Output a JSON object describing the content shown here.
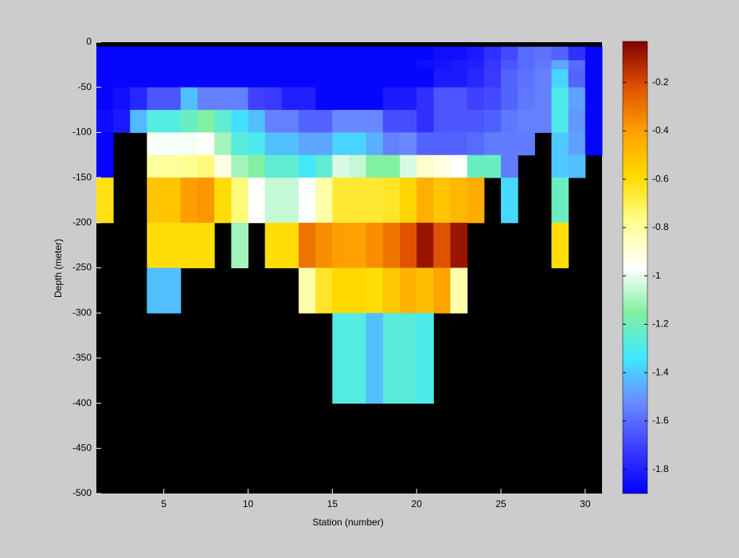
{
  "chart_data": {
    "type": "heatmap",
    "x_label": "Station (number)",
    "y_label": "Depth (meter)",
    "x": [
      1,
      2,
      3,
      4,
      5,
      6,
      7,
      8,
      9,
      10,
      11,
      12,
      13,
      14,
      15,
      16,
      17,
      18,
      19,
      20,
      21,
      22,
      23,
      24,
      25,
      26,
      27,
      28,
      29,
      30,
      31
    ],
    "y": [
      0,
      -5,
      -20,
      -30,
      -50,
      -75,
      -100,
      -125,
      -150,
      -200,
      -250,
      -300,
      -400,
      -500
    ],
    "xlim": [
      1,
      31
    ],
    "xticks": [
      5,
      10,
      15,
      20,
      25,
      30
    ],
    "ylim": [
      -500,
      0
    ],
    "yticks": [
      -500,
      -450,
      -400,
      -350,
      -300,
      -250,
      -200,
      -150,
      -100,
      -50,
      0
    ],
    "zlim": [
      -1.9,
      -0.03
    ],
    "colorbar_ticks": [
      -1.8,
      -1.6,
      -1.4,
      -1.2,
      -1,
      -0.8,
      -0.6,
      -0.4,
      -0.2
    ],
    "colormap": [
      "#0000ff",
      "#3c3cff",
      "#6a8aff",
      "#40e8ff",
      "#80f0a0",
      "#ffffff",
      "#ffff90",
      "#ffdc00",
      "#ffa000",
      "#e05000",
      "#800000"
    ],
    "background": "#000000",
    "values": [
      [
        null,
        null,
        null,
        null,
        null,
        null,
        null,
        null,
        null,
        null,
        null,
        null,
        null,
        null,
        null,
        null,
        null,
        null,
        null,
        null,
        null,
        null,
        null,
        null,
        null,
        null,
        null,
        null,
        null,
        null
      ],
      [
        -1.88,
        -1.88,
        -1.88,
        -1.88,
        -1.88,
        -1.88,
        -1.88,
        -1.88,
        -1.88,
        -1.88,
        -1.88,
        -1.88,
        -1.88,
        -1.88,
        -1.88,
        -1.88,
        -1.88,
        -1.88,
        -1.88,
        -1.88,
        -1.85,
        -1.85,
        -1.82,
        -1.75,
        -1.68,
        -1.6,
        -1.58,
        -1.62,
        -1.75,
        -1.88
      ],
      [
        -1.88,
        -1.88,
        -1.88,
        -1.88,
        -1.88,
        -1.88,
        -1.88,
        -1.88,
        -1.88,
        -1.88,
        -1.88,
        -1.88,
        -1.88,
        -1.88,
        -1.88,
        -1.88,
        -1.88,
        -1.88,
        -1.88,
        -1.86,
        -1.84,
        -1.82,
        -1.8,
        -1.73,
        -1.65,
        -1.6,
        -1.57,
        -1.47,
        -1.6,
        -1.88
      ],
      [
        -1.88,
        -1.88,
        -1.88,
        -1.88,
        -1.88,
        -1.88,
        -1.88,
        -1.88,
        -1.88,
        -1.88,
        -1.88,
        -1.88,
        -1.88,
        -1.88,
        -1.88,
        -1.88,
        -1.88,
        -1.88,
        -1.88,
        -1.88,
        -1.82,
        -1.82,
        -1.78,
        -1.72,
        -1.62,
        -1.58,
        -1.55,
        -1.38,
        -1.62,
        -1.88
      ],
      [
        -1.88,
        -1.85,
        -1.78,
        -1.65,
        -1.65,
        -1.42,
        -1.55,
        -1.55,
        -1.55,
        -1.7,
        -1.72,
        -1.8,
        -1.8,
        -1.88,
        -1.88,
        -1.88,
        -1.88,
        -1.82,
        -1.82,
        -1.75,
        -1.65,
        -1.65,
        -1.7,
        -1.68,
        -1.62,
        -1.57,
        -1.55,
        -1.3,
        -1.48,
        -1.88
      ],
      [
        -1.86,
        -1.82,
        -1.43,
        -1.28,
        -1.28,
        -1.22,
        -1.15,
        -1.25,
        -1.35,
        -1.42,
        -1.55,
        -1.55,
        -1.62,
        -1.62,
        -1.53,
        -1.53,
        -1.53,
        -1.67,
        -1.67,
        -1.75,
        -1.65,
        -1.65,
        -1.65,
        -1.63,
        -1.57,
        -1.55,
        -1.55,
        -1.3,
        -1.5,
        -1.88
      ],
      [
        -1.88,
        null,
        null,
        -0.98,
        -0.98,
        -0.98,
        -0.97,
        -1.1,
        -1.27,
        -1.3,
        -1.42,
        -1.42,
        -1.47,
        -1.47,
        -1.38,
        -1.38,
        -1.45,
        -1.55,
        -1.53,
        -1.62,
        -1.62,
        -1.62,
        -1.6,
        -1.56,
        -1.56,
        -1.56,
        null,
        -1.4,
        -1.48,
        -1.88
      ],
      [
        -1.88,
        null,
        null,
        -0.8,
        -0.8,
        -0.78,
        -0.75,
        -0.92,
        -1.1,
        -1.15,
        -1.25,
        -1.25,
        -1.33,
        -1.25,
        -1.02,
        -1.05,
        -1.15,
        -1.15,
        -1.02,
        -0.88,
        -0.92,
        -0.96,
        -1.22,
        -1.22,
        -1.56,
        null,
        null,
        -1.4,
        -1.42,
        null
      ],
      [
        -0.62,
        null,
        null,
        -0.52,
        -0.52,
        -0.4,
        -0.38,
        -0.6,
        -0.75,
        -0.96,
        -1.05,
        -1.05,
        -0.97,
        -0.82,
        -0.66,
        -0.66,
        -0.66,
        -0.64,
        -0.57,
        -0.45,
        -0.52,
        -0.48,
        -0.44,
        null,
        -1.37,
        null,
        null,
        -1.22,
        null,
        null
      ],
      [
        null,
        null,
        null,
        -0.6,
        -0.6,
        -0.6,
        -0.6,
        null,
        -1.1,
        null,
        -0.6,
        -0.6,
        -0.3,
        -0.36,
        -0.4,
        -0.41,
        -0.36,
        -0.3,
        -0.22,
        -0.08,
        -0.22,
        -0.08,
        null,
        null,
        null,
        null,
        null,
        -0.6,
        null,
        null
      ],
      [
        null,
        null,
        null,
        -1.42,
        -1.42,
        null,
        null,
        null,
        null,
        null,
        null,
        null,
        -0.82,
        -0.64,
        -0.58,
        -0.58,
        -0.6,
        -0.53,
        -0.46,
        -0.5,
        -0.42,
        -0.82,
        null,
        null,
        null,
        null,
        null,
        null,
        null,
        null
      ],
      [
        null,
        null,
        null,
        null,
        null,
        null,
        null,
        null,
        null,
        null,
        null,
        null,
        null,
        null,
        -1.28,
        -1.28,
        -1.42,
        -1.27,
        -1.27,
        -1.3,
        null,
        null,
        null,
        null,
        null,
        null,
        null,
        null,
        null,
        null
      ],
      [
        null,
        null,
        null,
        null,
        null,
        null,
        null,
        null,
        null,
        null,
        null,
        null,
        null,
        null,
        null,
        null,
        null,
        null,
        null,
        null,
        null,
        null,
        null,
        null,
        null,
        null,
        null,
        null,
        null,
        null
      ]
    ]
  }
}
